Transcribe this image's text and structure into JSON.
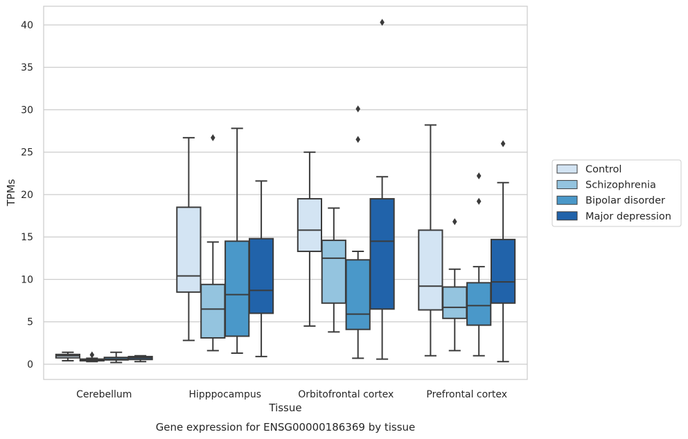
{
  "caption": "Gene expression for ENSG00000186369 by tissue",
  "chart_data": {
    "type": "boxplot",
    "xlabel": "Tissue",
    "ylabel": "TPMs",
    "ylim": [
      -1.8,
      42.2
    ],
    "yticks": [
      0,
      5,
      10,
      15,
      20,
      25,
      30,
      35,
      40
    ],
    "grid": "horizontal",
    "legend_position": "right",
    "categories": [
      "Cerebellum",
      "Hipppocampus",
      "Orbitofrontal cortex",
      "Prefrontal cortex"
    ],
    "series": [
      {
        "name": "Control",
        "color": "#d3e4f3",
        "boxes": [
          {
            "whislo": 0.4,
            "q1": 0.75,
            "med": 1.0,
            "q3": 1.15,
            "whishi": 1.4,
            "fliers": []
          },
          {
            "whislo": 2.8,
            "q1": 8.5,
            "med": 10.4,
            "q3": 18.5,
            "whishi": 26.7,
            "fliers": []
          },
          {
            "whislo": 4.5,
            "q1": 13.3,
            "med": 15.8,
            "q3": 19.5,
            "whishi": 25.0,
            "fliers": []
          },
          {
            "whislo": 1.0,
            "q1": 6.4,
            "med": 9.2,
            "q3": 15.8,
            "whishi": 28.2,
            "fliers": []
          }
        ]
      },
      {
        "name": "Schizophrenia",
        "color": "#94c4df",
        "boxes": [
          {
            "whislo": 0.3,
            "q1": 0.4,
            "med": 0.5,
            "q3": 0.6,
            "whishi": 0.7,
            "fliers": [
              1.1
            ]
          },
          {
            "whislo": 1.6,
            "q1": 3.1,
            "med": 6.5,
            "q3": 9.4,
            "whishi": 14.4,
            "fliers": [
              26.7
            ]
          },
          {
            "whislo": 3.8,
            "q1": 7.2,
            "med": 12.5,
            "q3": 14.6,
            "whishi": 18.4,
            "fliers": []
          },
          {
            "whislo": 1.6,
            "q1": 5.4,
            "med": 6.7,
            "q3": 9.1,
            "whishi": 11.2,
            "fliers": [
              16.8
            ]
          }
        ]
      },
      {
        "name": "Bipolar disorder",
        "color": "#4a98c9",
        "boxes": [
          {
            "whislo": 0.2,
            "q1": 0.5,
            "med": 0.6,
            "q3": 0.8,
            "whishi": 1.4,
            "fliers": []
          },
          {
            "whislo": 1.3,
            "q1": 3.3,
            "med": 8.2,
            "q3": 14.5,
            "whishi": 27.8,
            "fliers": []
          },
          {
            "whislo": 0.7,
            "q1": 4.1,
            "med": 5.9,
            "q3": 12.3,
            "whishi": 13.3,
            "fliers": [
              26.5,
              30.1
            ]
          },
          {
            "whislo": 1.0,
            "q1": 4.6,
            "med": 6.9,
            "q3": 9.6,
            "whishi": 11.5,
            "fliers": [
              19.2,
              22.2
            ]
          }
        ]
      },
      {
        "name": "Major depression",
        "color": "#2163aa",
        "boxes": [
          {
            "whislo": 0.3,
            "q1": 0.55,
            "med": 0.75,
            "q3": 0.9,
            "whishi": 1.0,
            "fliers": []
          },
          {
            "whislo": 0.9,
            "q1": 6.0,
            "med": 8.7,
            "q3": 14.8,
            "whishi": 21.6,
            "fliers": []
          },
          {
            "whislo": 0.6,
            "q1": 6.5,
            "med": 14.5,
            "q3": 19.5,
            "whishi": 22.1,
            "fliers": [
              40.3
            ]
          },
          {
            "whislo": 0.3,
            "q1": 7.2,
            "med": 9.7,
            "q3": 14.7,
            "whishi": 21.4,
            "fliers": [
              26.0
            ]
          }
        ]
      }
    ]
  }
}
